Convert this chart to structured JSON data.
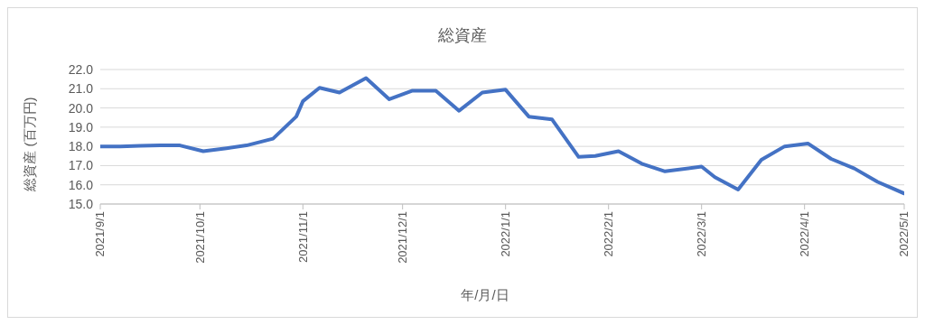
{
  "chart_data": {
    "type": "line",
    "title": "総資産",
    "xlabel": "年/月/日",
    "ylabel": "総資産 (百万円)",
    "x": [
      "2021-09-01",
      "2021-09-07",
      "2021-09-13",
      "2021-09-19",
      "2021-09-25",
      "2021-10-02",
      "2021-10-09",
      "2021-10-15",
      "2021-10-23",
      "2021-10-30",
      "2021-11-01",
      "2021-11-06",
      "2021-11-12",
      "2021-11-20",
      "2021-11-27",
      "2021-12-04",
      "2021-12-11",
      "2021-12-18",
      "2021-12-25",
      "2022-01-01",
      "2022-01-08",
      "2022-01-15",
      "2022-01-23",
      "2022-01-28",
      "2022-02-04",
      "2022-02-11",
      "2022-02-18",
      "2022-03-01",
      "2022-03-05",
      "2022-03-12",
      "2022-03-19",
      "2022-03-26",
      "2022-04-02",
      "2022-04-09",
      "2022-04-16",
      "2022-04-23",
      "2022-05-01"
    ],
    "series": [
      {
        "color": "#4472c4",
        "values": [
          18.0,
          18.0,
          18.03,
          18.05,
          18.05,
          17.75,
          17.9,
          18.05,
          18.4,
          19.55,
          20.35,
          21.05,
          20.8,
          21.55,
          20.45,
          20.9,
          20.9,
          19.85,
          20.8,
          20.95,
          19.55,
          19.4,
          17.45,
          17.5,
          17.75,
          17.1,
          16.7,
          16.95,
          16.4,
          15.75,
          17.3,
          18.0,
          18.15,
          17.35,
          16.85,
          16.15,
          15.55
        ]
      }
    ],
    "xlim": [
      "2021-09-01",
      "2022-05-01"
    ],
    "xticks": [
      {
        "value": "2021-09-01",
        "label": "2021/9/1"
      },
      {
        "value": "2021-10-01",
        "label": "2021/10/1"
      },
      {
        "value": "2021-11-01",
        "label": "2021/11/1"
      },
      {
        "value": "2021-12-01",
        "label": "2021/12/1"
      },
      {
        "value": "2022-01-01",
        "label": "2022/1/1"
      },
      {
        "value": "2022-02-01",
        "label": "2022/2/1"
      },
      {
        "value": "2022-03-01",
        "label": "2022/3/1"
      },
      {
        "value": "2022-04-01",
        "label": "2022/4/1"
      },
      {
        "value": "2022-05-01",
        "label": "2022/5/1"
      }
    ],
    "ylim": [
      15,
      22
    ],
    "yticks": [
      {
        "value": 15,
        "label": "15.0"
      },
      {
        "value": 16,
        "label": "16.0"
      },
      {
        "value": 17,
        "label": "17.0"
      },
      {
        "value": 18,
        "label": "18.0"
      },
      {
        "value": 19,
        "label": "19.0"
      },
      {
        "value": 20,
        "label": "20.0"
      },
      {
        "value": 21,
        "label": "21.0"
      },
      {
        "value": 22,
        "label": "22.0"
      }
    ],
    "grid": "y",
    "marker": "none",
    "line_style": "solid"
  }
}
